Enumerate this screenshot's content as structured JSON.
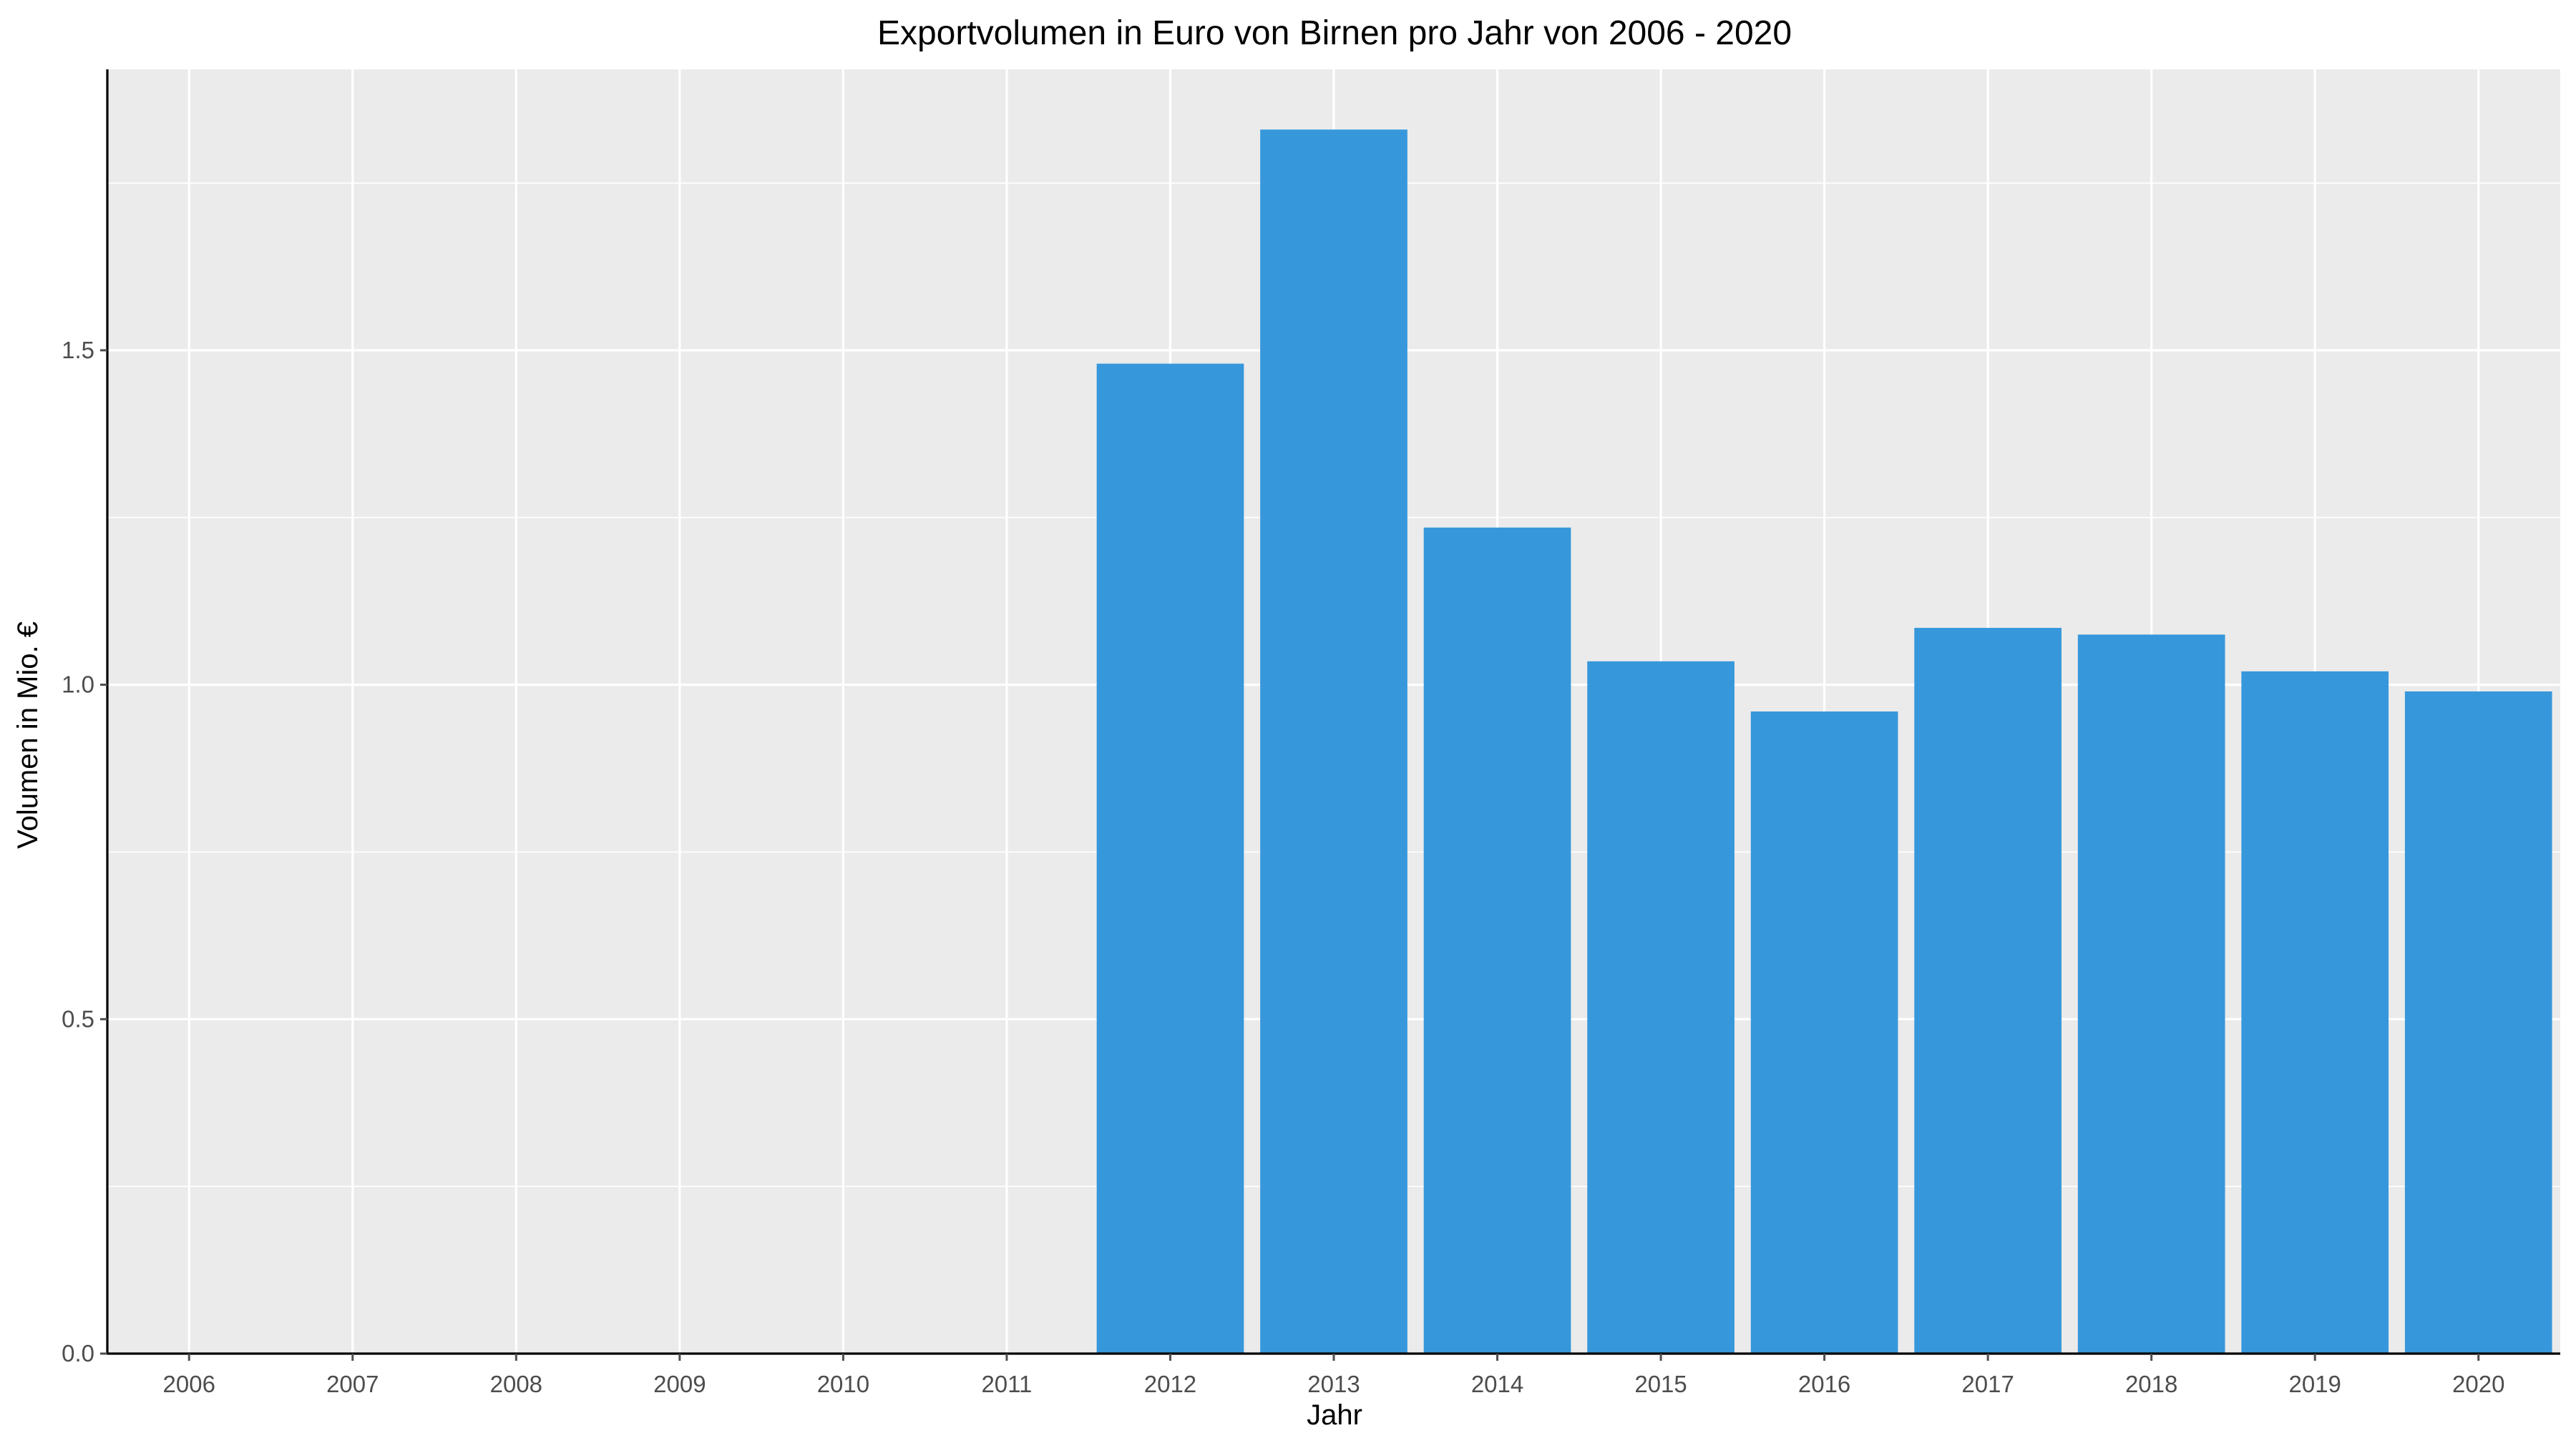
{
  "chart_data": {
    "type": "bar",
    "title": "Exportvolumen in Euro von Birnen pro Jahr von 2006 - 2020",
    "xlabel": "Jahr",
    "ylabel": "Volumen in Mio. €",
    "categories": [
      "2006",
      "2007",
      "2008",
      "2009",
      "2010",
      "2011",
      "2012",
      "2013",
      "2014",
      "2015",
      "2016",
      "2017",
      "2018",
      "2019",
      "2020"
    ],
    "values": [
      0,
      0,
      0,
      0,
      0,
      0,
      1.48,
      1.83,
      1.235,
      1.035,
      0.96,
      1.085,
      1.075,
      1.02,
      0.99
    ],
    "ylim": [
      0,
      1.92
    ],
    "y_ticks": [
      "0.0",
      "0.5",
      "1.0",
      "1.5"
    ],
    "y_tick_values": [
      0,
      0.5,
      1.0,
      1.5
    ],
    "grid": true,
    "legend": "none",
    "colors": {
      "bar": "#3797db",
      "panel_background": "#ebebeb",
      "grid_line": "#ffffff",
      "axis_line": "#000000",
      "tick_label": "#4d4d4d"
    }
  }
}
